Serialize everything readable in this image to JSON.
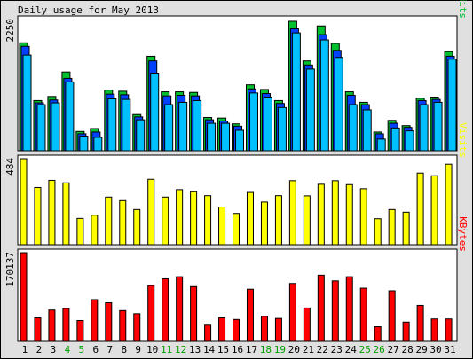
{
  "chart_data": {
    "type": "bar",
    "title": "Daily usage for May 2013",
    "categories": [
      "1",
      "2",
      "3",
      "4",
      "5",
      "6",
      "7",
      "8",
      "9",
      "10",
      "11",
      "12",
      "13",
      "14",
      "15",
      "16",
      "17",
      "18",
      "19",
      "20",
      "21",
      "22",
      "23",
      "24",
      "25",
      "26",
      "27",
      "28",
      "29",
      "30",
      "31"
    ],
    "weekend_days": [
      "4",
      "5",
      "11",
      "12",
      "18",
      "19",
      "25",
      "26"
    ],
    "colors": {
      "hits": "#00c030",
      "files": "#0040ff",
      "pages": "#00c0ff",
      "visits": "#ffff00",
      "kbytes": "#ff0000",
      "weekday_label": "#000000",
      "weekend_label": "#00a000",
      "frame_bg": "#e0e0e0",
      "plot_bg": "#ffffff"
    },
    "panels": [
      {
        "id": "hits-files-pages",
        "max_label": "2250",
        "ymax": 2250,
        "legend": [
          {
            "text": "Pages",
            "color": "#00c0ff"
          },
          {
            "text": "/",
            "color": "#000000"
          },
          {
            "text": "Files",
            "color": "#0040ff"
          },
          {
            "text": "/",
            "color": "#000000"
          },
          {
            "text": "Hits",
            "color": "#00c030"
          }
        ],
        "series": [
          {
            "name": "Hits",
            "values": [
              1850,
              860,
              930,
              1350,
              330,
              380,
              1040,
              1020,
              620,
              1620,
              1010,
              1010,
              1000,
              570,
              560,
              460,
              1130,
              1050,
              860,
              2220,
              1540,
              2140,
              1840,
              1010,
              830,
              320,
              520,
              430,
              900,
              920,
              1700
            ]
          },
          {
            "name": "Files",
            "values": [
              1790,
              820,
              870,
              1240,
              290,
              320,
              970,
              960,
              580,
              1540,
              940,
              950,
              940,
              530,
              510,
              420,
              1060,
              980,
              810,
              2090,
              1470,
              1990,
              1720,
              950,
              790,
              290,
              470,
              400,
              860,
              880,
              1620
            ]
          },
          {
            "name": "Pages",
            "values": [
              1640,
              790,
              820,
              1180,
              250,
              230,
              890,
              880,
              530,
              1330,
              790,
              830,
              860,
              470,
              470,
              350,
              990,
              920,
              740,
              2020,
              1400,
              1900,
              1600,
              790,
              700,
              200,
              390,
              340,
              790,
              830,
              1570
            ]
          }
        ]
      },
      {
        "id": "visits",
        "max_label": "484",
        "ymax": 484,
        "legend": [
          {
            "text": "Visits",
            "color": "#ffff00"
          }
        ],
        "series": [
          {
            "name": "Visits",
            "values": [
              484,
              322,
              362,
              348,
              148,
              166,
              268,
              248,
              198,
              368,
              268,
              310,
              298,
              276,
              212,
              176,
              294,
              240,
              276,
              360,
              275,
              340,
              360,
              338,
              315,
              146,
              198,
              183,
              403,
              388,
              453
            ]
          }
        ]
      },
      {
        "id": "kbytes",
        "max_label": "170137",
        "ymax": 170137,
        "legend": [
          {
            "text": "KBytes",
            "color": "#ff0000"
          }
        ],
        "series": [
          {
            "name": "KBytes",
            "values": [
              170137,
              45000,
              60000,
              63000,
              40000,
              80000,
              74000,
              59000,
              53000,
              107000,
              120000,
              124000,
              105000,
              31000,
              45000,
              42000,
              100000,
              48000,
              44000,
              111000,
              64000,
              127000,
              116000,
              124000,
              102000,
              28000,
              97000,
              37000,
              69000,
              43000,
              43000
            ]
          }
        ]
      }
    ]
  }
}
